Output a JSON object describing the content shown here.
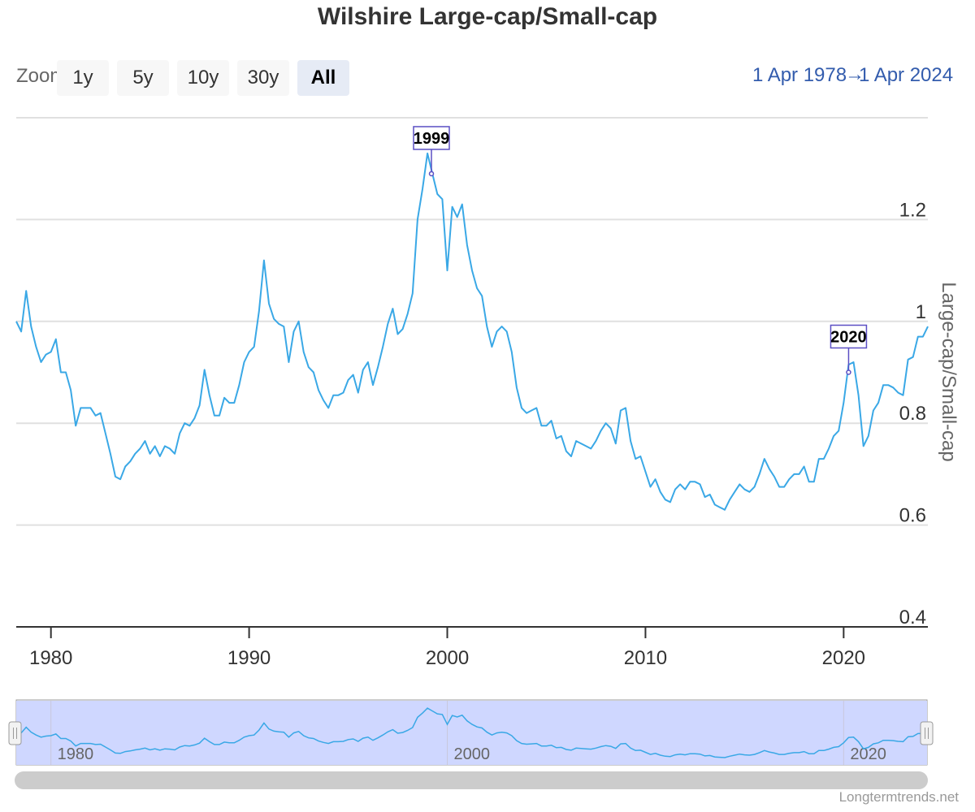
{
  "title": "Wilshire Large-cap/Small-cap",
  "range_selector": {
    "zoom_label": "Zoom",
    "buttons": [
      "1y",
      "5y",
      "10y",
      "30y",
      "All"
    ],
    "selected": "All",
    "from": "1 Apr 1978",
    "separator": "→",
    "to": "1 Apr 2024"
  },
  "credits": "Longtermtrends.net",
  "colors": {
    "series": "#3aa8e6",
    "flag": "#5b4fc4",
    "navigator_mask": "#cfd7ff",
    "scrollbar": "#cccccc"
  },
  "chart_data": {
    "type": "line",
    "title": "Wilshire Large-cap/Small-cap",
    "ylabel": "Large-cap/Small-cap",
    "xlabel": "",
    "xlim": [
      1978.25,
      2024.25
    ],
    "ylim": [
      0.4,
      1.4
    ],
    "y_ticks": [
      0.4,
      0.6,
      0.8,
      1,
      1.2
    ],
    "x_ticks": [
      1980,
      1990,
      2000,
      2010,
      2020
    ],
    "navigator_ticks": [
      1980,
      2000,
      2020
    ],
    "grid": true,
    "flags": [
      {
        "label": "1999",
        "x": 1999.2,
        "y": 1.29
      },
      {
        "label": "2020",
        "x": 2020.25,
        "y": 0.9
      }
    ],
    "series": [
      {
        "name": "Large-cap/Small-cap",
        "x": [
          1978.25,
          1978.5,
          1978.75,
          1979.0,
          1979.25,
          1979.5,
          1979.75,
          1980.0,
          1980.25,
          1980.5,
          1980.75,
          1981.0,
          1981.25,
          1981.5,
          1981.75,
          1982.0,
          1982.25,
          1982.5,
          1982.75,
          1983.0,
          1983.25,
          1983.5,
          1983.75,
          1984.0,
          1984.25,
          1984.5,
          1984.75,
          1985.0,
          1985.25,
          1985.5,
          1985.75,
          1986.0,
          1986.25,
          1986.5,
          1986.75,
          1987.0,
          1987.25,
          1987.5,
          1987.75,
          1988.0,
          1988.25,
          1988.5,
          1988.75,
          1989.0,
          1989.25,
          1989.5,
          1989.75,
          1990.0,
          1990.25,
          1990.5,
          1990.75,
          1991.0,
          1991.25,
          1991.5,
          1991.75,
          1992.0,
          1992.25,
          1992.5,
          1992.75,
          1993.0,
          1993.25,
          1993.5,
          1993.75,
          1994.0,
          1994.25,
          1994.5,
          1994.75,
          1995.0,
          1995.25,
          1995.5,
          1995.75,
          1996.0,
          1996.25,
          1996.5,
          1996.75,
          1997.0,
          1997.25,
          1997.5,
          1997.75,
          1998.0,
          1998.25,
          1998.5,
          1998.75,
          1999.0,
          1999.25,
          1999.5,
          1999.75,
          2000.0,
          2000.25,
          2000.5,
          2000.75,
          2001.0,
          2001.25,
          2001.5,
          2001.75,
          2002.0,
          2002.25,
          2002.5,
          2002.75,
          2003.0,
          2003.25,
          2003.5,
          2003.75,
          2004.0,
          2004.25,
          2004.5,
          2004.75,
          2005.0,
          2005.25,
          2005.5,
          2005.75,
          2006.0,
          2006.25,
          2006.5,
          2006.75,
          2007.0,
          2007.25,
          2007.5,
          2007.75,
          2008.0,
          2008.25,
          2008.5,
          2008.75,
          2009.0,
          2009.25,
          2009.5,
          2009.75,
          2010.0,
          2010.25,
          2010.5,
          2010.75,
          2011.0,
          2011.25,
          2011.5,
          2011.75,
          2012.0,
          2012.25,
          2012.5,
          2012.75,
          2013.0,
          2013.25,
          2013.5,
          2013.75,
          2014.0,
          2014.25,
          2014.5,
          2014.75,
          2015.0,
          2015.25,
          2015.5,
          2015.75,
          2016.0,
          2016.25,
          2016.5,
          2016.75,
          2017.0,
          2017.25,
          2017.5,
          2017.75,
          2018.0,
          2018.25,
          2018.5,
          2018.75,
          2019.0,
          2019.25,
          2019.5,
          2019.75,
          2020.0,
          2020.25,
          2020.5,
          2020.75,
          2021.0,
          2021.25,
          2021.5,
          2021.75,
          2022.0,
          2022.25,
          2022.5,
          2022.75,
          2023.0,
          2023.25,
          2023.5,
          2023.75,
          2024.0,
          2024.25
        ],
        "values": [
          1.0,
          0.98,
          1.06,
          0.99,
          0.95,
          0.92,
          0.935,
          0.94,
          0.965,
          0.9,
          0.9,
          0.865,
          0.795,
          0.83,
          0.83,
          0.83,
          0.815,
          0.82,
          0.78,
          0.74,
          0.695,
          0.69,
          0.715,
          0.725,
          0.74,
          0.75,
          0.765,
          0.74,
          0.755,
          0.735,
          0.755,
          0.75,
          0.74,
          0.78,
          0.8,
          0.795,
          0.81,
          0.835,
          0.905,
          0.855,
          0.815,
          0.815,
          0.85,
          0.84,
          0.84,
          0.875,
          0.92,
          0.94,
          0.95,
          1.02,
          1.12,
          1.035,
          1.005,
          0.995,
          0.99,
          0.92,
          0.98,
          1.0,
          0.94,
          0.91,
          0.9,
          0.865,
          0.845,
          0.83,
          0.855,
          0.855,
          0.86,
          0.885,
          0.895,
          0.86,
          0.905,
          0.92,
          0.875,
          0.91,
          0.95,
          0.995,
          1.025,
          0.975,
          0.985,
          1.015,
          1.055,
          1.2,
          1.26,
          1.33,
          1.29,
          1.25,
          1.24,
          1.1,
          1.225,
          1.205,
          1.23,
          1.15,
          1.1,
          1.065,
          1.05,
          0.99,
          0.95,
          0.98,
          0.99,
          0.98,
          0.94,
          0.87,
          0.83,
          0.82,
          0.825,
          0.83,
          0.795,
          0.795,
          0.805,
          0.77,
          0.775,
          0.745,
          0.735,
          0.765,
          0.76,
          0.755,
          0.75,
          0.765,
          0.785,
          0.8,
          0.79,
          0.76,
          0.825,
          0.83,
          0.765,
          0.73,
          0.735,
          0.705,
          0.675,
          0.69,
          0.665,
          0.65,
          0.645,
          0.67,
          0.68,
          0.67,
          0.685,
          0.685,
          0.68,
          0.655,
          0.66,
          0.64,
          0.635,
          0.63,
          0.65,
          0.665,
          0.68,
          0.67,
          0.665,
          0.675,
          0.7,
          0.73,
          0.71,
          0.695,
          0.675,
          0.675,
          0.69,
          0.7,
          0.7,
          0.715,
          0.685,
          0.685,
          0.73,
          0.73,
          0.75,
          0.775,
          0.785,
          0.84,
          0.915,
          0.92,
          0.855,
          0.755,
          0.775,
          0.825,
          0.84,
          0.875,
          0.875,
          0.87,
          0.86,
          0.855,
          0.925,
          0.93,
          0.97,
          0.97,
          0.99
        ]
      }
    ]
  }
}
